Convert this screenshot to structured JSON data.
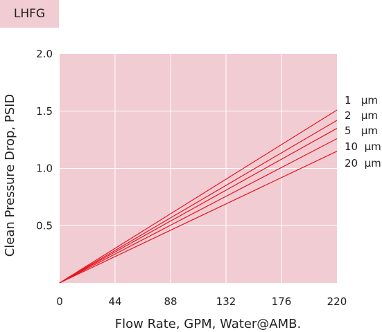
{
  "tag": "LHFG",
  "colors": {
    "plot_bg": "#f2ccd3",
    "grid": "#ffffff",
    "line": "#e8141e",
    "tag_bg": "#f2ccd3"
  },
  "chart_data": {
    "type": "line",
    "title": "",
    "xlabel": "Flow Rate, GPM, Water@AMB.",
    "ylabel": "Clean Pressure Drop, PSID",
    "xlim": [
      0,
      220
    ],
    "ylim": [
      0,
      2.0
    ],
    "xticks": [
      "0",
      "44",
      "88",
      "132",
      "176",
      "220"
    ],
    "yticks": [
      "0.5",
      "1.0",
      "1.5",
      "2.0"
    ],
    "grid": true,
    "legend": "right-end labels",
    "series": [
      {
        "name": "1   µm",
        "x": [
          0,
          220
        ],
        "values": [
          0,
          1.51
        ]
      },
      {
        "name": "2   µm",
        "x": [
          0,
          220
        ],
        "values": [
          0,
          1.42
        ]
      },
      {
        "name": "5   µm",
        "x": [
          0,
          220
        ],
        "values": [
          0,
          1.35
        ]
      },
      {
        "name": "10  µm",
        "x": [
          0,
          220
        ],
        "values": [
          0,
          1.26
        ]
      },
      {
        "name": "20  µm",
        "x": [
          0,
          220
        ],
        "values": [
          0,
          1.15
        ]
      }
    ]
  }
}
